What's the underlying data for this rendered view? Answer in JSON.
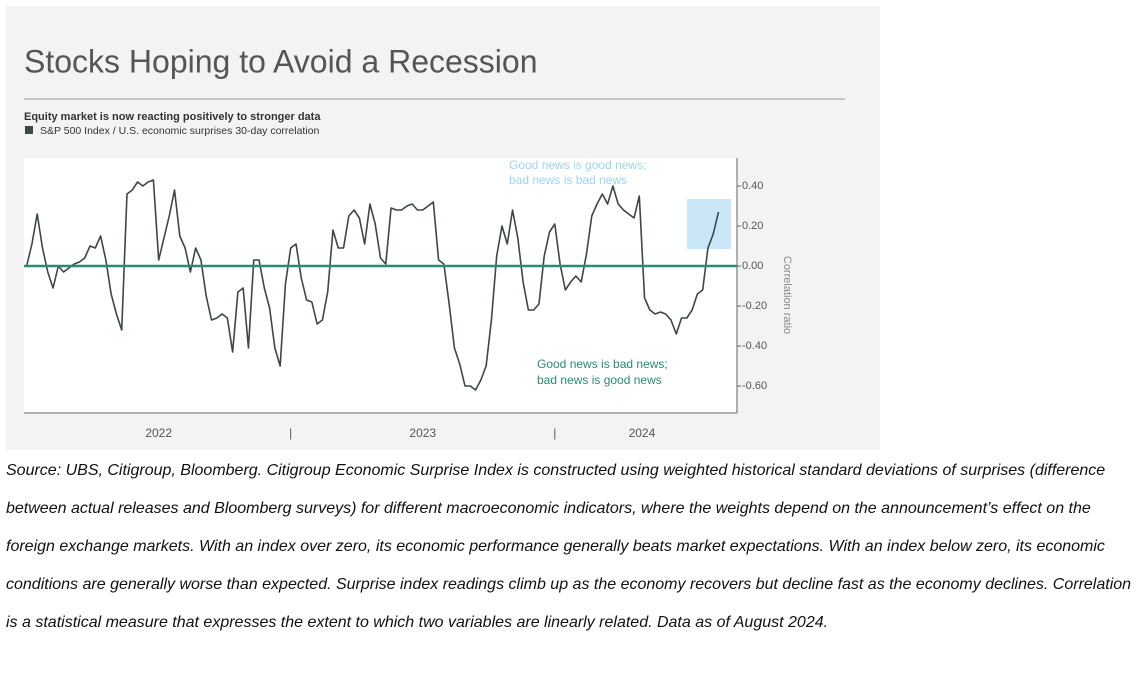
{
  "chart_data": {
    "type": "line",
    "title": "Stocks Hoping to Avoid a Recession",
    "subtitle": "Equity market is now reacting positively to stronger data",
    "y_label": "Correlation ratio",
    "annotations": [
      "Good news is good news;",
      "bad news is bad news",
      "Good news is bad news;",
      "bad news is good news"
    ],
    "x": [
      2022,
      2022.02,
      2022.04,
      2022.06,
      2022.08,
      2022.1,
      2022.12,
      2022.14,
      2022.16,
      2022.18,
      2022.2,
      2022.22,
      2022.24,
      2022.26,
      2022.28,
      2022.3,
      2022.32,
      2022.34,
      2022.36,
      2022.38,
      2022.4,
      2022.42,
      2022.44,
      2022.46,
      2022.48,
      2022.5,
      2022.52,
      2022.54,
      2022.56,
      2022.58,
      2022.6,
      2022.62,
      2022.64,
      2022.66,
      2022.68,
      2022.7,
      2022.72,
      2022.74,
      2022.76,
      2022.78,
      2022.8,
      2022.82,
      2022.84,
      2022.86,
      2022.88,
      2022.9,
      2022.92,
      2022.94,
      2022.96,
      2022.98,
      2023,
      2023.02,
      2023.04,
      2023.06,
      2023.08,
      2023.1,
      2023.12,
      2023.14,
      2023.16,
      2023.18,
      2023.2,
      2023.22,
      2023.24,
      2023.26,
      2023.28,
      2023.3,
      2023.32,
      2023.34,
      2023.36,
      2023.38,
      2023.4,
      2023.42,
      2023.44,
      2023.46,
      2023.48,
      2023.5,
      2023.52,
      2023.54,
      2023.56,
      2023.58,
      2023.6,
      2023.62,
      2023.64,
      2023.66,
      2023.68,
      2023.7,
      2023.72,
      2023.74,
      2023.76,
      2023.78,
      2023.8,
      2023.82,
      2023.84,
      2023.86,
      2023.88,
      2023.9,
      2023.92,
      2023.94,
      2023.96,
      2023.98,
      2024,
      2024.02,
      2024.04,
      2024.06,
      2024.08,
      2024.1,
      2024.12,
      2024.14,
      2024.16,
      2024.18,
      2024.2,
      2024.22,
      2024.24,
      2024.26,
      2024.28,
      2024.3,
      2024.32,
      2024.34,
      2024.36,
      2024.38,
      2024.4,
      2024.42,
      2024.44,
      2024.46,
      2024.48,
      2024.5,
      2024.52,
      2024.54,
      2024.56,
      2024.58,
      2024.6,
      2024.62
    ],
    "series": [
      {
        "name": "S&P 500 Index / U.S. economic surprises 30-day correlation",
        "color": "#3b4843",
        "values": [
          0,
          0.11,
          0.26,
          0.09,
          -0.03,
          -0.11,
          0,
          -0.03,
          -0.01,
          0.01,
          0.02,
          0.04,
          0.1,
          0.09,
          0.15,
          0.03,
          -0.14,
          -0.24,
          -0.32,
          0.36,
          0.38,
          0.42,
          0.4,
          0.42,
          0.43,
          0.03,
          0.14,
          0.25,
          0.38,
          0.15,
          0.09,
          -0.03,
          0.09,
          0.03,
          -0.15,
          -0.27,
          -0.26,
          -0.24,
          -0.26,
          -0.43,
          -0.13,
          -0.11,
          -0.41,
          0.03,
          0.03,
          -0.11,
          -0.21,
          -0.41,
          -0.5,
          -0.09,
          0.09,
          0.11,
          -0.06,
          -0.17,
          -0.18,
          -0.29,
          -0.27,
          -0.13,
          0.18,
          0.09,
          0.09,
          0.25,
          0.28,
          0.24,
          0.11,
          0.31,
          0.21,
          0.04,
          0.01,
          0.29,
          0.28,
          0.28,
          0.3,
          0.31,
          0.28,
          0.28,
          0.3,
          0.32,
          0.03,
          0.01,
          -0.19,
          -0.41,
          -0.49,
          -0.6,
          -0.6,
          -0.62,
          -0.57,
          -0.5,
          -0.27,
          0.05,
          0.2,
          0.11,
          0.28,
          0.14,
          -0.08,
          -0.22,
          -0.22,
          -0.19,
          0.05,
          0.17,
          0.21,
          0.01,
          -0.12,
          -0.08,
          -0.05,
          -0.08,
          0.06,
          0.25,
          0.31,
          0.36,
          0.31,
          0.4,
          0.31,
          0.28,
          0.26,
          0.24,
          0.35,
          -0.16,
          -0.22,
          -0.24,
          -0.23,
          -0.24,
          -0.27,
          -0.34,
          -0.26,
          -0.26,
          -0.22,
          -0.14,
          -0.12,
          0.09,
          0.16,
          0.27
        ]
      }
    ],
    "xlim": [
      2021.99,
      2024.69
    ],
    "xticks": [
      {
        "value": 2022.5,
        "label": "2022"
      },
      {
        "value": 2023,
        "label": "|"
      },
      {
        "value": 2023.5,
        "label": "2023"
      },
      {
        "value": 2024,
        "label": "|"
      },
      {
        "value": 2024.33,
        "label": "2024"
      }
    ],
    "ylim": [
      -0.735,
      0.54
    ],
    "yticks": [
      {
        "value": 0.4,
        "label": "0.40"
      },
      {
        "value": 0.2,
        "label": "0.20"
      },
      {
        "value": 0,
        "label": "0.00"
      },
      {
        "value": -0.2,
        "label": "-0.20"
      },
      {
        "value": -0.4,
        "label": "-0.40"
      },
      {
        "value": -0.6,
        "label": "-0.60"
      }
    ],
    "zero_line_color": "#2a8a76"
  },
  "footnote": "Source: UBS, Citigroup, Bloomberg. Citigroup Economic Surprise Index is constructed using weighted historical standard deviations of surprises (difference between actual releases and Bloomberg surveys) for different macroeconomic indicators, where the weights depend on the announcement’s effect on the foreign exchange markets. With an index over zero, its economic performance generally beats market expectations. With an index below zero, its economic conditions are generally worse than expected. Surprise index readings climb up as the economy recovers but decline fast as the economy declines. Correlation is a statistical measure that expresses the extent to which two variables are linearly related. Data as of August 2024."
}
